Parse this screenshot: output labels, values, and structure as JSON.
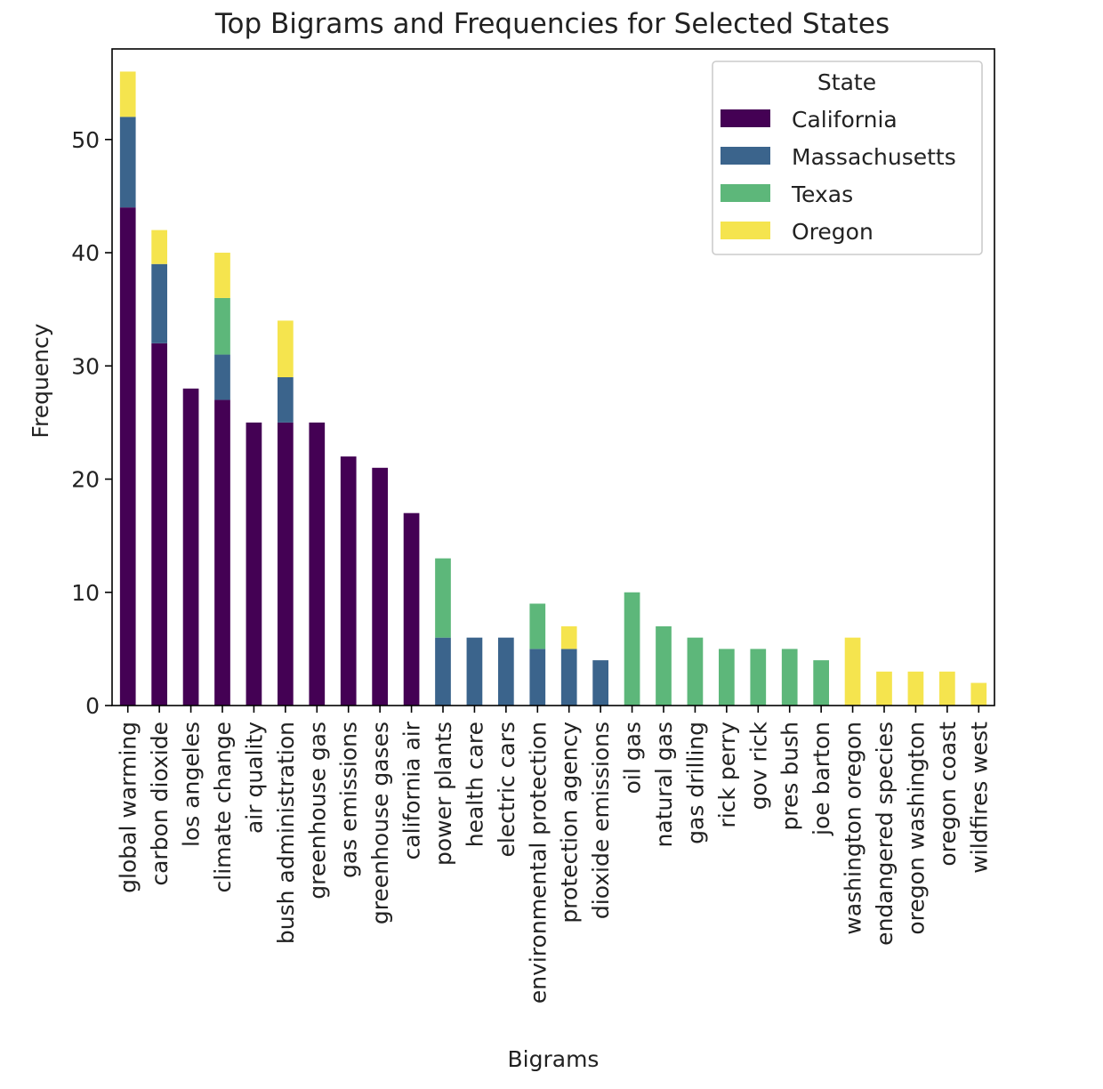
{
  "chart_data": {
    "type": "bar",
    "stacked": true,
    "title": "Top Bigrams and Frequencies for Selected States",
    "xlabel": "Bigrams",
    "ylabel": "Frequency",
    "ylim": [
      0,
      58
    ],
    "yticks": [
      0,
      10,
      20,
      30,
      40,
      50
    ],
    "grid": false,
    "legend": {
      "title": "State",
      "placement": "top-right"
    },
    "categories": [
      "global warming",
      "carbon dioxide",
      "los angeles",
      "climate change",
      "air quality",
      "bush administration",
      "greenhouse gas",
      "gas emissions",
      "greenhouse gases",
      "california air",
      "power plants",
      "health care",
      "electric cars",
      "environmental protection",
      "protection agency",
      "dioxide emissions",
      "oil gas",
      "natural gas",
      "gas drilling",
      "rick perry",
      "gov rick",
      "pres bush",
      "joe barton",
      "washington oregon",
      "endangered species",
      "oregon washington",
      "oregon coast",
      "wildfires west"
    ],
    "series": [
      {
        "name": "California",
        "color": "#440154",
        "values": [
          44,
          32,
          28,
          27,
          25,
          25,
          25,
          22,
          21,
          17,
          0,
          0,
          0,
          0,
          0,
          0,
          0,
          0,
          0,
          0,
          0,
          0,
          0,
          0,
          0,
          0,
          0,
          0
        ]
      },
      {
        "name": "Massachusetts",
        "color": "#3b648c",
        "values": [
          8,
          7,
          0,
          4,
          0,
          4,
          0,
          0,
          0,
          0,
          6,
          6,
          6,
          5,
          5,
          4,
          0,
          0,
          0,
          0,
          0,
          0,
          0,
          0,
          0,
          0,
          0,
          0
        ]
      },
      {
        "name": "Texas",
        "color": "#5db77a",
        "values": [
          0,
          0,
          0,
          5,
          0,
          0,
          0,
          0,
          0,
          0,
          7,
          0,
          0,
          4,
          0,
          0,
          10,
          7,
          6,
          5,
          5,
          5,
          4,
          0,
          0,
          0,
          0,
          0
        ]
      },
      {
        "name": "Oregon",
        "color": "#f5e44e",
        "values": [
          4,
          3,
          0,
          4,
          0,
          5,
          0,
          0,
          0,
          0,
          0,
          0,
          0,
          0,
          2,
          0,
          0,
          0,
          0,
          0,
          0,
          0,
          0,
          6,
          3,
          3,
          3,
          2
        ]
      }
    ]
  }
}
